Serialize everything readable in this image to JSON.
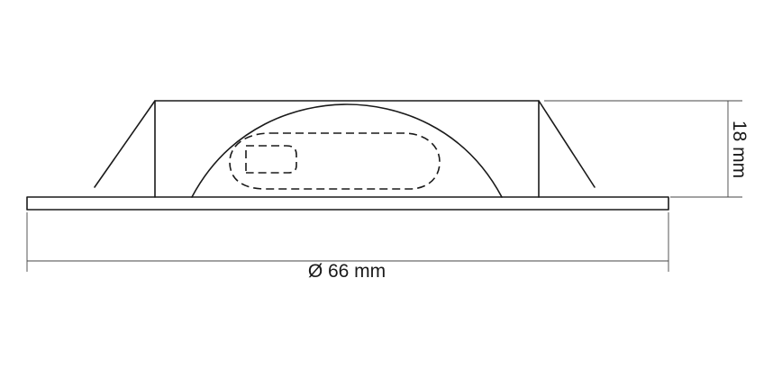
{
  "diagram": {
    "diameter_label": "Ø 66 mm",
    "height_label": "18 mm"
  }
}
